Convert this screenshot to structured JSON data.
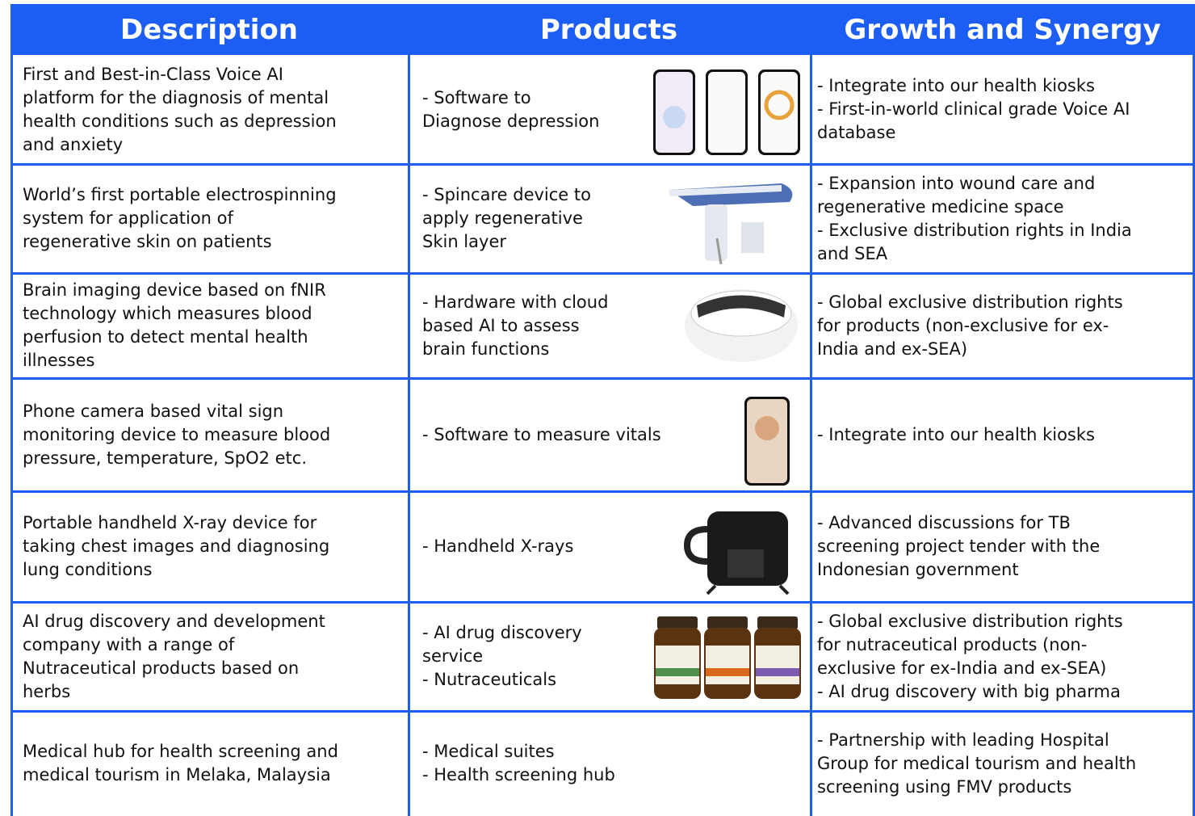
{
  "table": {
    "headers": [
      "Description",
      "Products",
      "Growth and Synergy"
    ],
    "rows": [
      [
        [
          "First and Best-in-Class Voice AI",
          "platform for the diagnosis of mental",
          "health conditions such as depression",
          "and anxiety"
        ],
        [
          "- Software to",
          "Diagnose depression"
        ],
        [
          "- Integrate into our health kiosks",
          "- First-in-world clinical grade Voice AI",
          "database"
        ]
      ],
      [
        [
          "World’s first portable electrospinning",
          "system for application of",
          "regenerative skin on patients"
        ],
        [
          "- Spincare device to",
          "apply regenerative",
          "Skin layer"
        ],
        [
          "- Expansion into wound care and",
          "regenerative medicine space",
          "- Exclusive distribution rights in India",
          "and SEA"
        ]
      ],
      [
        [
          "Brain imaging device based on fNIR",
          "technology which measures blood",
          "perfusion to detect mental health",
          "illnesses"
        ],
        [
          "- Hardware with cloud",
          "based AI to assess",
          "brain functions"
        ],
        [
          "- Global exclusive distribution rights",
          "for products (non-exclusive for ex-",
          "India and ex-SEA)"
        ]
      ],
      [
        [
          "Phone camera based vital sign",
          "monitoring device to measure blood",
          "pressure, temperature, SpO2 etc."
        ],
        [
          "- Software to measure vitals"
        ],
        [
          "- Integrate into our health kiosks"
        ]
      ],
      [
        [
          "Portable handheld X-ray device for",
          "taking chest images and diagnosing",
          "lung conditions"
        ],
        [
          "- Handheld X-rays"
        ],
        [
          "- Advanced discussions for TB",
          "screening project tender with the",
          "Indonesian government"
        ]
      ],
      [
        [
          "AI drug discovery and development",
          "company with a range of",
          "Nutraceutical products based on",
          "herbs"
        ],
        [
          "- AI drug discovery",
          "service",
          "- Nutraceuticals"
        ],
        [
          "- Global exclusive distribution rights",
          "for nutraceutical products (non-",
          "exclusive for ex-India and ex-SEA)",
          "- AI drug discovery with big pharma"
        ]
      ],
      [
        [
          "Medical hub for health screening and",
          "medical tourism in Melaka, Malaysia"
        ],
        [
          "- Medical suites",
          "- Health screening hub"
        ],
        [
          "- Partnership with leading Hospital",
          "Group for medical tourism and health",
          "screening using FMV products"
        ]
      ]
    ]
  }
}
